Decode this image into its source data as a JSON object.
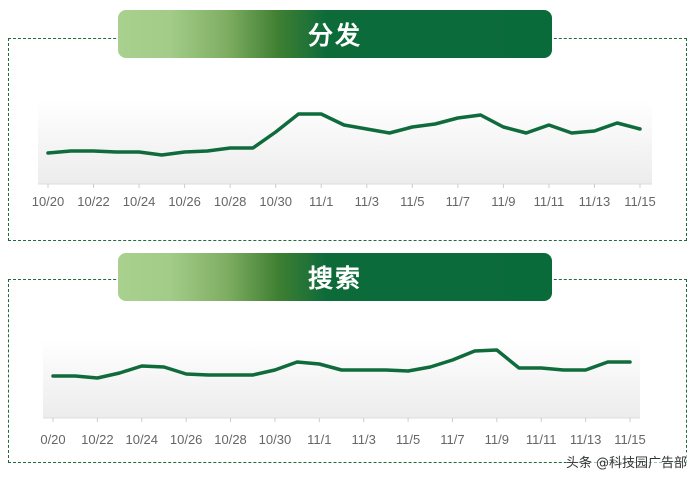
{
  "colors": {
    "line": "#0f6b3c",
    "banner_dark": "#0a6b3a",
    "banner_light": "#a9d08e",
    "border": "#1f6b3e"
  },
  "watermark": "头条 @科技园广告部",
  "chart_data": [
    {
      "type": "line",
      "title": "分发",
      "categories": [
        "10/20",
        "10/21",
        "10/22",
        "10/23",
        "10/24",
        "10/25",
        "10/26",
        "10/27",
        "10/28",
        "10/29",
        "10/30",
        "10/31",
        "11/1",
        "11/2",
        "11/3",
        "11/4",
        "11/5",
        "11/6",
        "11/7",
        "11/8",
        "11/9",
        "11/10",
        "11/11",
        "11/12",
        "11/13",
        "11/14",
        "11/15"
      ],
      "tick_labels": [
        "10/20",
        "10/22",
        "10/24",
        "10/26",
        "10/28",
        "10/30",
        "11/1",
        "11/3",
        "11/5",
        "11/7",
        "11/9",
        "11/11",
        "11/13",
        "11/15"
      ],
      "values": [
        31,
        33,
        33,
        32,
        32,
        29,
        32,
        33,
        36,
        36,
        52,
        70,
        70,
        59,
        55,
        51,
        57,
        60,
        66,
        69,
        57,
        51,
        59,
        51,
        53,
        61,
        55
      ],
      "ylim": [
        0,
        85
      ],
      "y_axis_shown": false,
      "grid": false
    },
    {
      "type": "line",
      "title": "搜索",
      "categories": [
        "10/20",
        "10/21",
        "10/22",
        "10/23",
        "10/24",
        "10/25",
        "10/26",
        "10/27",
        "10/28",
        "10/29",
        "10/30",
        "10/31",
        "11/1",
        "11/2",
        "11/3",
        "11/4",
        "11/5",
        "11/6",
        "11/7",
        "11/8",
        "11/9",
        "11/10",
        "11/11",
        "11/12",
        "11/13",
        "11/14",
        "11/15"
      ],
      "tick_labels": [
        "0/20",
        "10/22",
        "10/24",
        "10/26",
        "10/28",
        "10/30",
        "11/1",
        "11/3",
        "11/5",
        "11/7",
        "11/9",
        "11/11",
        "11/13",
        "11/15"
      ],
      "values": [
        42,
        42,
        40,
        45,
        52,
        51,
        44,
        43,
        43,
        43,
        48,
        56,
        54,
        48,
        48,
        48,
        47,
        51,
        58,
        67,
        68,
        50,
        50,
        48,
        48,
        56,
        56
      ],
      "ylim": [
        0,
        85
      ],
      "y_axis_shown": false,
      "grid": false
    }
  ]
}
